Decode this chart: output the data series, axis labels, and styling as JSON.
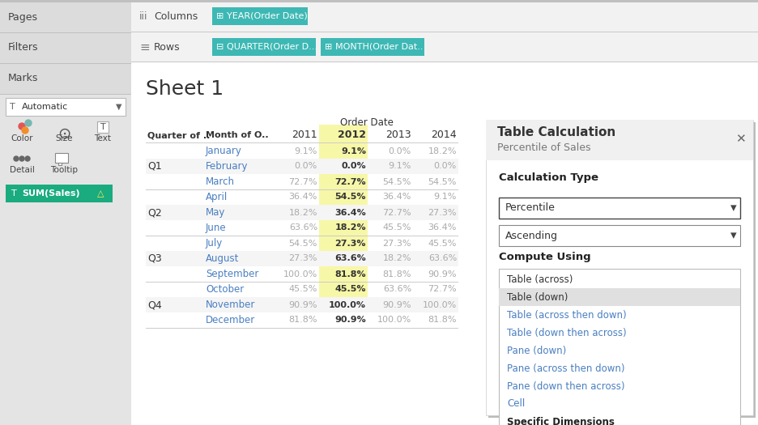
{
  "bg_color": "#e0e0e0",
  "left_panel_bg": "#e8e8e8",
  "separator_color": "#c8c8c8",
  "main_bg": "#ffffff",
  "teal_color": "#3eb8b4",
  "page_label": "Pages",
  "filters_label": "Filters",
  "marks_label": "Marks",
  "columns_label": "Columns",
  "rows_label": "Rows",
  "year_pill": "YEAR(Order Date)",
  "quarter_pill": "QUARTER(Order D...",
  "month_pill": "MONTH(Order Dat..",
  "sheet_title": "Sheet 1",
  "order_date_label": "Order Date",
  "col_headers": [
    "Quarter of ..",
    "Month of O..",
    "2011",
    "2012",
    "2013",
    "2014"
  ],
  "quarters": [
    "Q1",
    "Q2",
    "Q3",
    "Q4"
  ],
  "months": [
    [
      "January",
      "February",
      "March"
    ],
    [
      "April",
      "May",
      "June"
    ],
    [
      "July",
      "August",
      "September"
    ],
    [
      "October",
      "November",
      "December"
    ]
  ],
  "data_2011": [
    [
      "9.1%",
      "0.0%",
      "72.7%"
    ],
    [
      "36.4%",
      "18.2%",
      "63.6%"
    ],
    [
      "54.5%",
      "27.3%",
      "100.0%"
    ],
    [
      "45.5%",
      "90.9%",
      "81.8%"
    ]
  ],
  "data_2012": [
    [
      "9.1%",
      "0.0%",
      "72.7%"
    ],
    [
      "54.5%",
      "36.4%",
      "18.2%"
    ],
    [
      "27.3%",
      "63.6%",
      "81.8%"
    ],
    [
      "45.5%",
      "100.0%",
      "90.9%"
    ]
  ],
  "data_2013": [
    [
      "0.0%",
      "9.1%",
      "54.5%"
    ],
    [
      "36.4%",
      "72.7%",
      "45.5%"
    ],
    [
      "27.3%",
      "18.2%",
      "81.8%"
    ],
    [
      "63.6%",
      "90.9%",
      "100.0%"
    ]
  ],
  "data_2014": [
    [
      "18.2%",
      "0.0%",
      "54.5%"
    ],
    [
      "9.1%",
      "27.3%",
      "36.4%"
    ],
    [
      "45.5%",
      "63.6%",
      "90.9%"
    ],
    [
      "72.7%",
      "100.0%",
      "81.8%"
    ]
  ],
  "panel_dialog_title": "Table Calculation",
  "panel_dialog_subtitle": "Percentile of Sales",
  "calc_type_label": "Calculation Type",
  "calc_type_value": "Percentile",
  "calc_sort_value": "Ascending",
  "compute_using_label": "Compute Using",
  "compute_options": [
    "Table (across)",
    "Table (down)",
    "Table (across then down)",
    "Table (down then across)",
    "Pane (down)",
    "Pane (across then down)",
    "Pane (down then across)",
    "Cell",
    "Specific Dimensions"
  ],
  "selected_option": "Table (down)",
  "yellow_col": "#f7f7a8",
  "auto_label": "Automatic",
  "sum_sales_label": "SUM(Sales)",
  "green_pill": "#1aab7f"
}
